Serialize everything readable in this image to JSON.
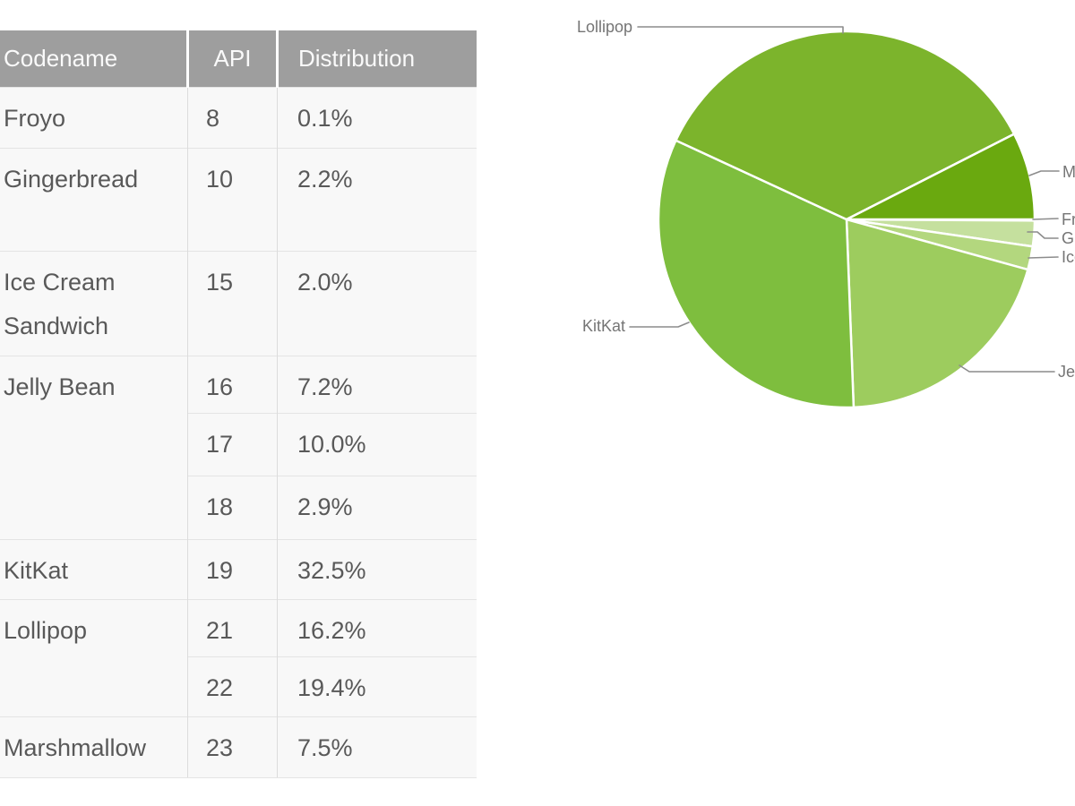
{
  "table": {
    "columns": [
      "Codename",
      "API",
      "Distribution"
    ],
    "rows": [
      {
        "codename": "Froyo",
        "api": "8",
        "distribution": "0.1%"
      },
      {
        "codename": "Gingerbread",
        "api": "10",
        "distribution": "2.2%"
      },
      {
        "codename": "Ice Cream Sandwich",
        "api": "15",
        "distribution": "2.0%"
      },
      {
        "codename": "Jelly Bean",
        "api": "16",
        "distribution": "7.2%"
      },
      {
        "codename": null,
        "api": "17",
        "distribution": "10.0%"
      },
      {
        "codename": null,
        "api": "18",
        "distribution": "2.9%"
      },
      {
        "codename": "KitKat",
        "api": "19",
        "distribution": "32.5%"
      },
      {
        "codename": "Lollipop",
        "api": "21",
        "distribution": "16.2%"
      },
      {
        "codename": null,
        "api": "22",
        "distribution": "19.4%"
      },
      {
        "codename": "Marshmallow",
        "api": "23",
        "distribution": "7.5%"
      }
    ]
  },
  "chart_data": {
    "type": "pie",
    "unit": "percent",
    "title": "",
    "legend_position": "outside-callout-labels",
    "grid": false,
    "start_angle": "3-oclock-clockwise",
    "slices": [
      {
        "label": "Froyo",
        "value": 0.1,
        "color": "#D9EBC4"
      },
      {
        "label": "Gingerbread",
        "value": 2.2,
        "color": "#C5E09E"
      },
      {
        "label": "Ice Cream Sandwich",
        "value": 2.0,
        "color": "#B3D77E"
      },
      {
        "label": "Jelly Bean",
        "value": 20.1,
        "color": "#9DCC5E"
      },
      {
        "label": "KitKat",
        "value": 32.5,
        "color": "#7EBE3E"
      },
      {
        "label": "Lollipop",
        "value": 35.6,
        "color": "#7CB42C"
      },
      {
        "label": "Marshmallow",
        "value": 7.5,
        "color": "#6AA90F"
      }
    ]
  },
  "colors": {
    "header_bg": "#9E9E9E",
    "header_text": "#FAFAFA",
    "row_bg": "#F8F8F8",
    "body_text": "#595959",
    "border": "#E4E4E4",
    "label_text": "#757575",
    "leader_line": "#8C8C8C",
    "slice_divider": "#FFFFFF"
  }
}
